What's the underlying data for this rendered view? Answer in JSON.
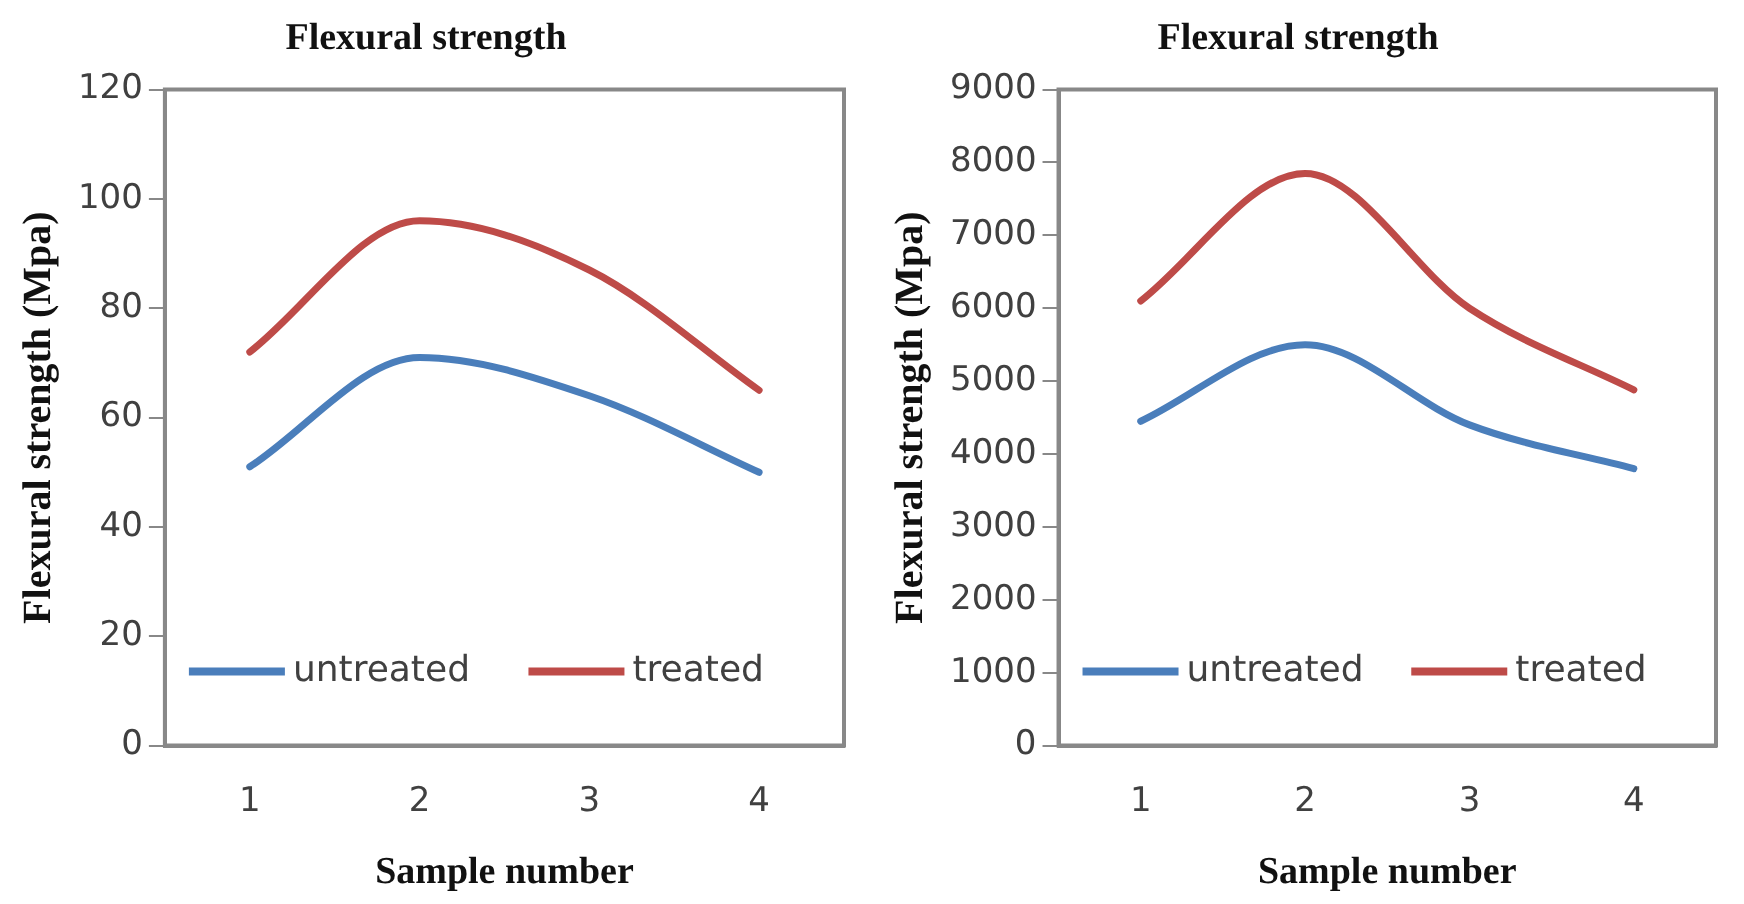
{
  "chart_data": [
    {
      "type": "line",
      "title": "Flexural strength",
      "xlabel": "Sample number",
      "ylabel": "Flexural strength (Mpa)",
      "categories": [
        "1",
        "2",
        "3",
        "4"
      ],
      "ylim": [
        0,
        120
      ],
      "yticks": [
        0,
        20,
        40,
        60,
        80,
        100,
        120
      ],
      "legend": "bottom",
      "grid": false,
      "series": [
        {
          "name": "untreated",
          "color": "#4a7ebb",
          "values": [
            51,
            71,
            64,
            50
          ]
        },
        {
          "name": "treated",
          "color": "#be4b48",
          "values": [
            72,
            96,
            87,
            65
          ]
        }
      ]
    },
    {
      "type": "line",
      "title": "Flexural strength",
      "xlabel": "Sample number",
      "ylabel": "Flexural strength (Mpa)",
      "categories": [
        "1",
        "2",
        "3",
        "4"
      ],
      "ylim": [
        0,
        9000
      ],
      "yticks": [
        0,
        1000,
        2000,
        3000,
        4000,
        5000,
        6000,
        7000,
        8000,
        9000
      ],
      "legend": "bottom",
      "grid": false,
      "series": [
        {
          "name": "untreated",
          "color": "#4a7ebb",
          "values": [
            4450,
            5500,
            4400,
            3800
          ]
        },
        {
          "name": "treated",
          "color": "#be4b48",
          "values": [
            6100,
            7850,
            6000,
            4880
          ]
        }
      ]
    }
  ]
}
